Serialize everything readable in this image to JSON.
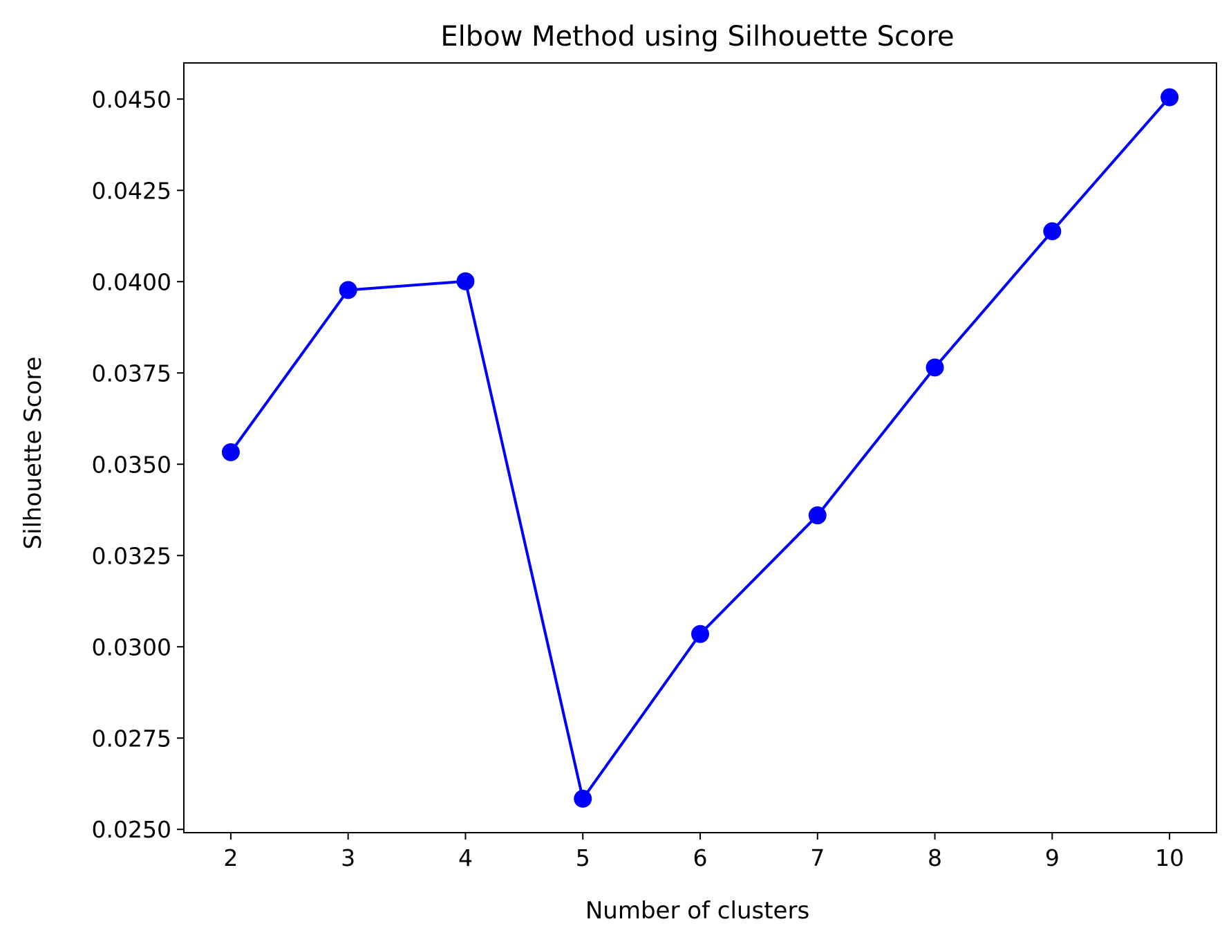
{
  "chart_data": {
    "type": "line",
    "title": "Elbow Method using Silhouette Score",
    "xlabel": "Number of clusters",
    "ylabel": "Silhouette Score",
    "x": [
      2,
      3,
      4,
      5,
      6,
      7,
      8,
      9,
      10
    ],
    "series": [
      {
        "values": [
          0.03533,
          0.03977,
          0.04001,
          0.02584,
          0.03035,
          0.0336,
          0.03765,
          0.04138,
          0.04505
        ]
      }
    ],
    "xticks": [
      "2",
      "3",
      "4",
      "5",
      "6",
      "7",
      "8",
      "9",
      "10"
    ],
    "yticks": [
      "0.0250",
      "0.0275",
      "0.0300",
      "0.0325",
      "0.0350",
      "0.0375",
      "0.0400",
      "0.0425",
      "0.0450"
    ],
    "ytick_values": [
      0.025,
      0.0275,
      0.03,
      0.0325,
      0.035,
      0.0375,
      0.04,
      0.0425,
      0.045
    ],
    "xlim": [
      1.6,
      10.4
    ],
    "ylim": [
      0.02491,
      0.04599
    ],
    "line_color": "#0000ff",
    "marker": "circle",
    "grid": false,
    "legend": "none"
  }
}
